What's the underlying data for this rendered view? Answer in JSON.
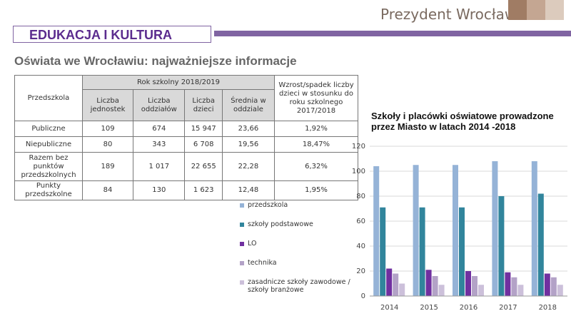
{
  "header": {
    "brand": "Prezydent Wrocławia",
    "section": "EDUKACJA I KULTURA",
    "title": "Oświata we Wrocławiu: najważniejsze informacje"
  },
  "table": {
    "corner": "Przedszkola",
    "group": "Rok szkolny 2018/2019",
    "change": "Wzrost/spadek liczby dzieci w stosunku do roku szkolnego 2017/2018",
    "columns": [
      "Liczba jednostek",
      "Liczba oddziałów",
      "Liczba dzieci",
      "Średnia w oddziale"
    ],
    "rows": [
      [
        "Publiczne",
        "109",
        "674",
        "15 947",
        "23,66",
        "1,92%"
      ],
      [
        "Niepubliczne",
        "80",
        "343",
        "6 708",
        "19,56",
        "18,47%"
      ],
      [
        "Razem bez punktów przedszkolnych",
        "189",
        "1 017",
        "22 655",
        "22,28",
        "6,32%"
      ],
      [
        "Punkty przedszkolne",
        "84",
        "130",
        "1 623",
        "12,48",
        "1,95%"
      ]
    ]
  },
  "chart_data": {
    "type": "bar",
    "title": "Szkoły i placówki oświatowe prowadzone przez Miasto w latach 2014 -2018",
    "categories": [
      "2014",
      "2015",
      "2016",
      "2017",
      "2018"
    ],
    "series": [
      {
        "name": "przedszkola",
        "color": "#95b3d7",
        "values": [
          104,
          105,
          105,
          108,
          108
        ]
      },
      {
        "name": "szkoły podstawowe",
        "color": "#31859c",
        "values": [
          71,
          71,
          71,
          80,
          82
        ]
      },
      {
        "name": "LO",
        "color": "#7030a0",
        "values": [
          22,
          21,
          20,
          19,
          18
        ]
      },
      {
        "name": "technika",
        "color": "#b3a2c7",
        "values": [
          18,
          16,
          16,
          15,
          15
        ]
      },
      {
        "name": "zasadnicze szkoły zawodowe / szkoły branżowe",
        "color": "#ccc0da",
        "values": [
          10,
          9,
          9,
          9,
          9
        ]
      }
    ],
    "ylim": [
      0,
      120
    ],
    "yticks": [
      0,
      20,
      40,
      60,
      80,
      100,
      120
    ],
    "grid": true
  }
}
